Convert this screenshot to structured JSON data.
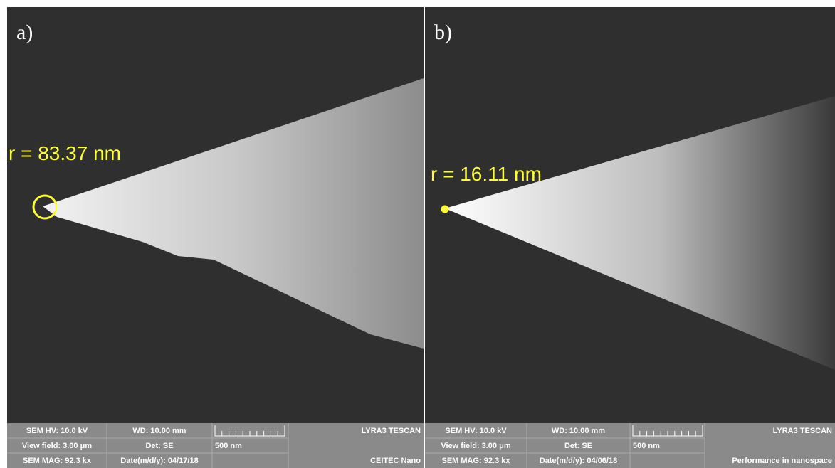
{
  "panels": [
    {
      "label": "a)",
      "radius_label": "r = 83.37 nm",
      "info_bar": {
        "hv": "SEM HV: 10.0 kV",
        "wd": "WD: 10.00 mm",
        "brand": "LYRA3 TESCAN",
        "view_field": "View field: 3.00 μm",
        "detector": "Det: SE",
        "scale": "500 nm",
        "magnification": "SEM MAG: 92.3 kx",
        "date": "Date(m/d/y): 04/17/18",
        "footer": "CEITEC Nano"
      }
    },
    {
      "label": "b)",
      "radius_label": "r = 16.11 nm",
      "info_bar": {
        "hv": "SEM HV: 10.0 kV",
        "wd": "WD: 10.00 mm",
        "brand": "LYRA3 TESCAN",
        "view_field": "View field: 3.00 μm",
        "detector": "Det: SE",
        "scale": "500 nm",
        "magnification": "SEM MAG: 92.3 kx",
        "date": "Date(m/d/y): 04/06/18",
        "footer": "Performance in nanospace"
      }
    }
  ]
}
